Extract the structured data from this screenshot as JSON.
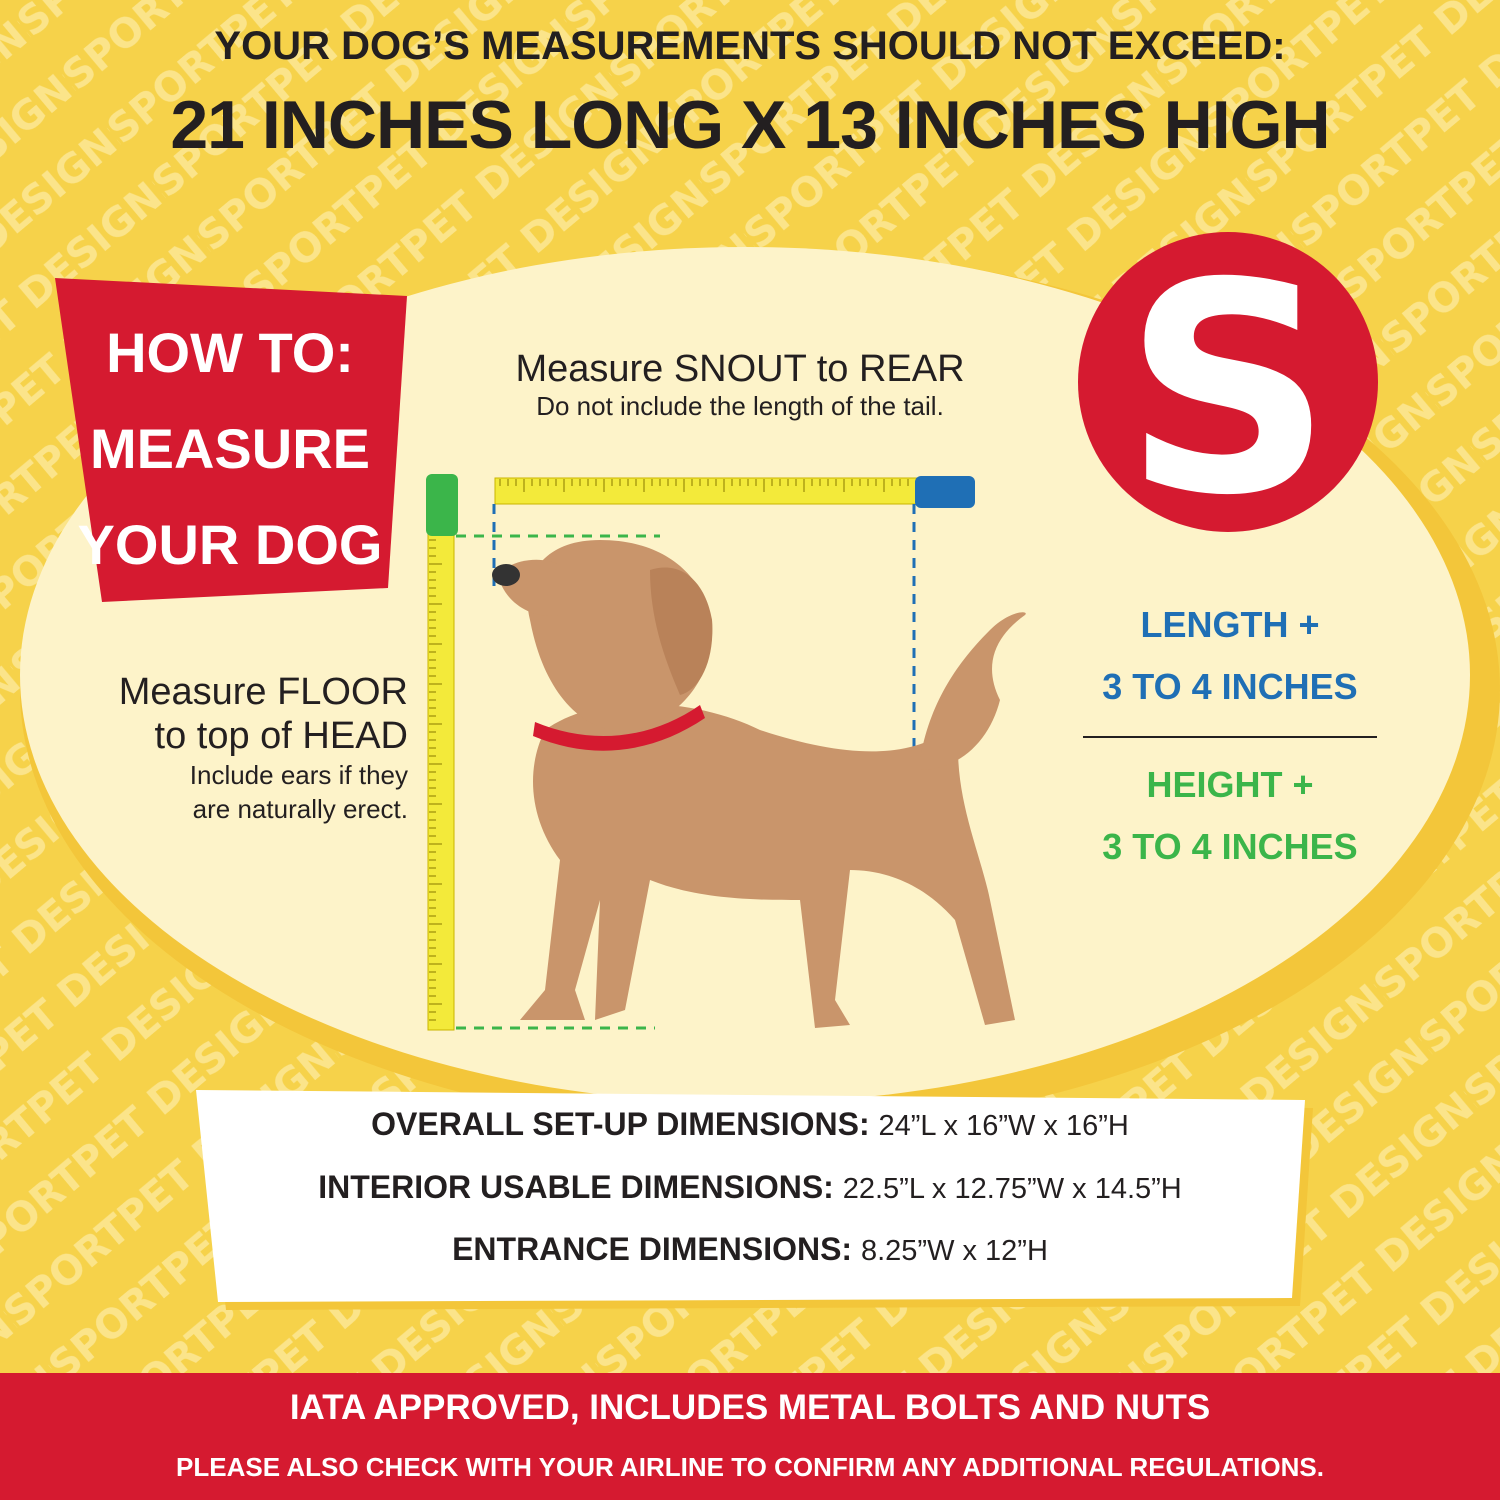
{
  "watermark": "SPORTPET DESIGNS",
  "header": {
    "line1": "YOUR DOG’S MEASUREMENTS SHOULD NOT EXCEED:",
    "line2": "21 INCHES LONG X 13 INCHES HIGH"
  },
  "howto": {
    "line1": "HOW TO:",
    "line2": "MEASURE",
    "line3": "YOUR DOG"
  },
  "length_instruction": {
    "title": "Measure SNOUT to REAR",
    "note": "Do not include the length of the tail."
  },
  "height_instruction": {
    "title1": "Measure FLOOR",
    "title2": "to top of HEAD",
    "note1": "Include ears if they",
    "note2": "are naturally erect."
  },
  "logo": {
    "letter": "S"
  },
  "allowance": {
    "length1": "LENGTH +",
    "length2": "3 TO 4 INCHES",
    "height1": "HEIGHT +",
    "height2": "3 TO 4 INCHES"
  },
  "dimensions": [
    {
      "label": "OVERALL SET-UP DIMENSIONS:",
      "value": "24”L x 16”W x 16”H"
    },
    {
      "label": "INTERIOR USABLE DIMENSIONS:",
      "value": "22.5”L x 12.75”W x 14.5”H"
    },
    {
      "label": "ENTRANCE DIMENSIONS:",
      "value": "8.25”W x 12”H"
    }
  ],
  "footer": {
    "line1": "IATA APPROVED, INCLUDES METAL BOLTS AND NUTS",
    "line2": "PLEASE ALSO CHECK WITH YOUR AIRLINE TO CONFIRM ANY ADDITIONAL REGULATIONS."
  },
  "colors": {
    "background": "#f6d24a",
    "red": "#d51a30",
    "blue": "#1f6fb5",
    "green": "#3bb54a",
    "cream": "#fdf3c9",
    "dog": "#c9956b"
  }
}
